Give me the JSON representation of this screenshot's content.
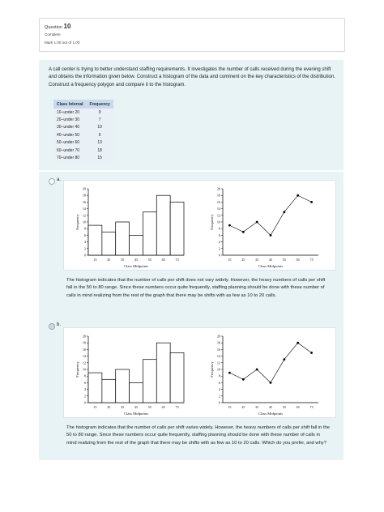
{
  "question": {
    "label": "Question",
    "number": "10",
    "state": "Complete",
    "mark": "Mark 1.00 out of 1.00"
  },
  "prompt": "A call center is trying to better understand staffing requirements. It investigates the number of calls received during the evening shift and obtains the information given below. Construct a histogram of the data and comment on the key characteristics of the distribution. Construct a frequency polygon and compare it to the histogram.",
  "table": {
    "headers": [
      "Class Interval",
      "Frequency"
    ],
    "rows": [
      [
        "10–under 20",
        "9"
      ],
      [
        "20–under 30",
        "7"
      ],
      [
        "30–under 40",
        "10"
      ],
      [
        "40–under 50",
        "6"
      ],
      [
        "50–under 60",
        "13"
      ],
      [
        "60–under 70",
        "18"
      ],
      [
        "70–under 80",
        "15"
      ]
    ]
  },
  "options": [
    {
      "letter": "a.",
      "selected": false,
      "text": "The histogram indicates that the number of calls per shift does not vary widely. However, the heavy numbers of calls per shift fall in the 50 to 80 range. Since these numbers occur quite frequently, staffing planning should be done with these number of calls in mind realizing from the rest of the graph that there may be shifts with as few as 10 to 20 calls."
    },
    {
      "letter": "b.",
      "selected": true,
      "text": "The histogram indicates that the number of calls per shift varies widely. However, the heavy numbers of calls per shift fall in the 50 to 80 range. Since these numbers occur quite frequently, staffing planning should be done with these number of calls in mind realizing from the rest of the graph that there may be shifts with as few as 10 to 20 calls. Which do you prefer, and why?"
    }
  ],
  "chart_data": [
    {
      "option": "a.",
      "type": "bar",
      "categories": [
        "15",
        "25",
        "35",
        "45",
        "55",
        "65",
        "75"
      ],
      "values": [
        9,
        7,
        10,
        6,
        13,
        18,
        16
      ],
      "xlabel": "Class Midpoints",
      "ylabel": "Frequency",
      "ylim": [
        0,
        20
      ],
      "yticks": [
        "0",
        "2",
        "4",
        "6",
        "8",
        "10",
        "12",
        "14",
        "16",
        "18",
        "20"
      ]
    },
    {
      "option": "a.",
      "type": "line",
      "categories": [
        "15",
        "25",
        "35",
        "45",
        "55",
        "65",
        "75"
      ],
      "values": [
        9,
        7,
        10,
        6,
        13,
        18,
        16
      ],
      "xlabel": "Class Midpoints",
      "ylabel": "Frequency",
      "ylim": [
        0,
        20
      ],
      "yticks": [
        "0",
        "2",
        "4",
        "6",
        "8",
        "10",
        "12",
        "14",
        "16",
        "18",
        "20"
      ]
    },
    {
      "option": "b.",
      "type": "bar",
      "categories": [
        "15",
        "25",
        "35",
        "45",
        "55",
        "65",
        "75"
      ],
      "values": [
        9,
        7,
        10,
        6,
        13,
        18,
        15
      ],
      "xlabel": "Class Midpoints",
      "ylabel": "Frequency",
      "ylim": [
        0,
        20
      ],
      "yticks": [
        "0",
        "2",
        "4",
        "6",
        "8",
        "10",
        "12",
        "14",
        "16",
        "18",
        "20"
      ]
    },
    {
      "option": "b.",
      "type": "line",
      "categories": [
        "15",
        "25",
        "35",
        "45",
        "55",
        "65",
        "75"
      ],
      "values": [
        9,
        7,
        10,
        6,
        13,
        18,
        15
      ],
      "xlabel": "Class Midpoints",
      "ylabel": "Frequency",
      "ylim": [
        0,
        20
      ],
      "yticks": [
        "0",
        "2",
        "4",
        "6",
        "8",
        "10",
        "12",
        "14",
        "16",
        "18",
        "20"
      ]
    }
  ]
}
